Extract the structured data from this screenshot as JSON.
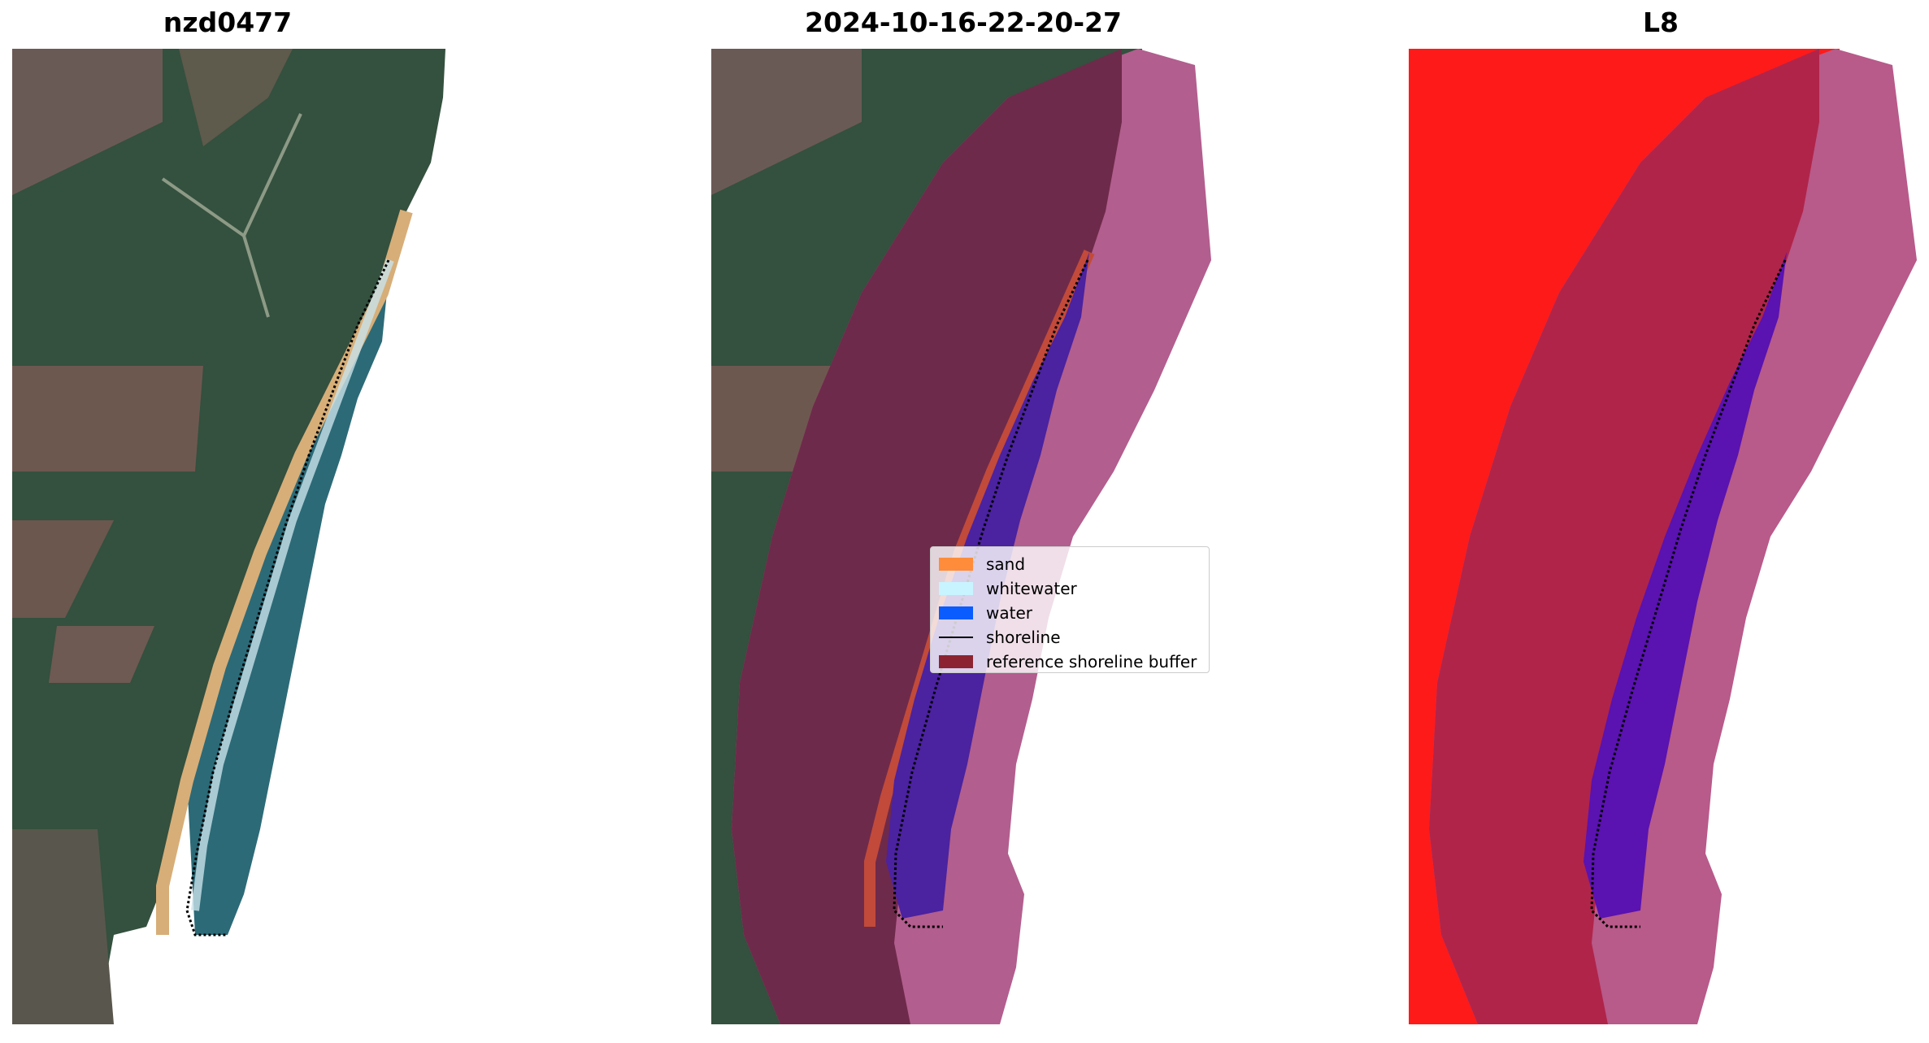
{
  "panels": [
    {
      "title": "nzd0477"
    },
    {
      "title": "2024-10-16-22-20-27"
    },
    {
      "title": "L8"
    }
  ],
  "legend": {
    "items": [
      {
        "label": "sand",
        "color": "#ff8c3a"
      },
      {
        "label": "whitewater",
        "color": "#c8f4ff"
      },
      {
        "label": "water",
        "color": "#0a5cff"
      },
      {
        "label": "shoreline",
        "color": "#000000"
      },
      {
        "label": "reference shoreline buffer",
        "color": "#8b2430"
      }
    ]
  },
  "colors": {
    "land_green": "#2f4a3a",
    "field_brown": "#6b5a52",
    "sand": "#d8b07c",
    "sea": "#2e6a78",
    "buffer_outer": "#b25c8c",
    "buffer_inner": "#6e2a4a",
    "water_class": "#4b22a0",
    "l8_red": "#ff1a1a"
  }
}
